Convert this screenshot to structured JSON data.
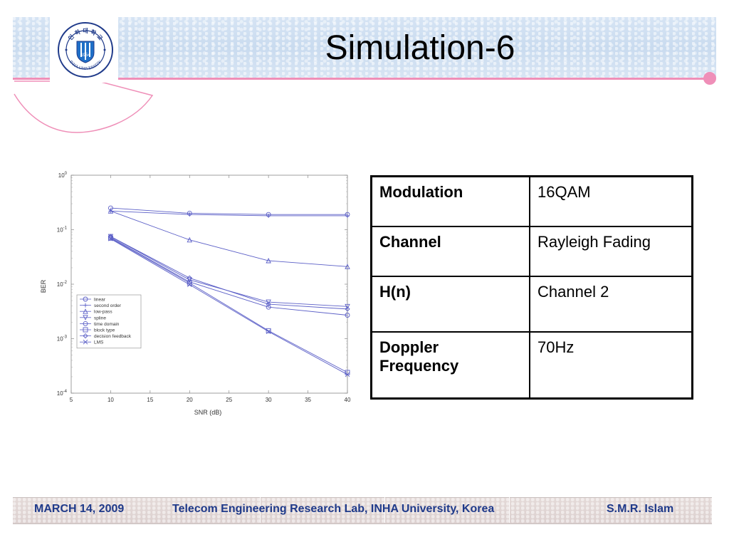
{
  "slide": {
    "title": "Simulation-6"
  },
  "logo": {
    "top_text": "인 하 대 학 교",
    "bottom_text": "INHA UNIVERSITY",
    "year": "1954"
  },
  "colors": {
    "accent_pink": "#ef8fb8",
    "header_blue": "#d0e0f2",
    "footer_text": "#1f3a8a",
    "series_blue": "#5b5fc7"
  },
  "table": {
    "rows": [
      {
        "key": "Modulation",
        "value": "16QAM"
      },
      {
        "key": "Channel",
        "value": "Rayleigh Fading"
      },
      {
        "key": "H(n)",
        "value": "Channel 2"
      },
      {
        "key_line1": "Doppler",
        "key_line2": "Frequency",
        "value": "70Hz"
      }
    ]
  },
  "footer": {
    "date": "MARCH 14, 2009",
    "lab": "Telecom Engineering Research Lab, INHA University, Korea",
    "author": "S.M.R. Islam"
  },
  "chart_data": {
    "type": "line",
    "title": "",
    "xlabel": "SNR (dB)",
    "ylabel": "BER",
    "xlim": [
      5,
      40
    ],
    "ylim": [
      0.0001,
      1
    ],
    "yscale": "log",
    "xticks": [
      5,
      10,
      15,
      20,
      25,
      30,
      35,
      40
    ],
    "yticks": [
      {
        "value": 1,
        "base": "10",
        "exp": "0"
      },
      {
        "value": 0.1,
        "base": "10",
        "exp": "-1"
      },
      {
        "value": 0.01,
        "base": "10",
        "exp": "-2"
      },
      {
        "value": 0.001,
        "base": "10",
        "exp": "-3"
      },
      {
        "value": 0.0001,
        "base": "10",
        "exp": "-4"
      }
    ],
    "grid": false,
    "legend": "center-left",
    "x": [
      10,
      20,
      30,
      40
    ],
    "series": [
      {
        "name": "linear",
        "marker": "circle",
        "values": [
          0.25,
          0.2,
          0.19,
          0.19
        ]
      },
      {
        "name": "second order",
        "marker": "plus",
        "values": [
          0.22,
          0.19,
          0.18,
          0.18
        ]
      },
      {
        "name": "low-pass",
        "marker": "triangle-up",
        "values": [
          0.22,
          0.065,
          0.027,
          0.021
        ]
      },
      {
        "name": "spline",
        "marker": "triangle-down",
        "values": [
          0.075,
          0.012,
          0.0047,
          0.0039
        ]
      },
      {
        "name": "time domain",
        "marker": "circle",
        "values": [
          0.072,
          0.011,
          0.0038,
          0.0027
        ]
      },
      {
        "name": "block type",
        "marker": "square",
        "values": [
          0.07,
          0.0105,
          0.0014,
          0.00024
        ]
      },
      {
        "name": "decision feedback",
        "marker": "diamond",
        "values": [
          0.075,
          0.013,
          0.0043,
          0.0035
        ]
      },
      {
        "name": "LMS",
        "marker": "x",
        "values": [
          0.068,
          0.0098,
          0.00135,
          0.00022
        ]
      }
    ]
  }
}
